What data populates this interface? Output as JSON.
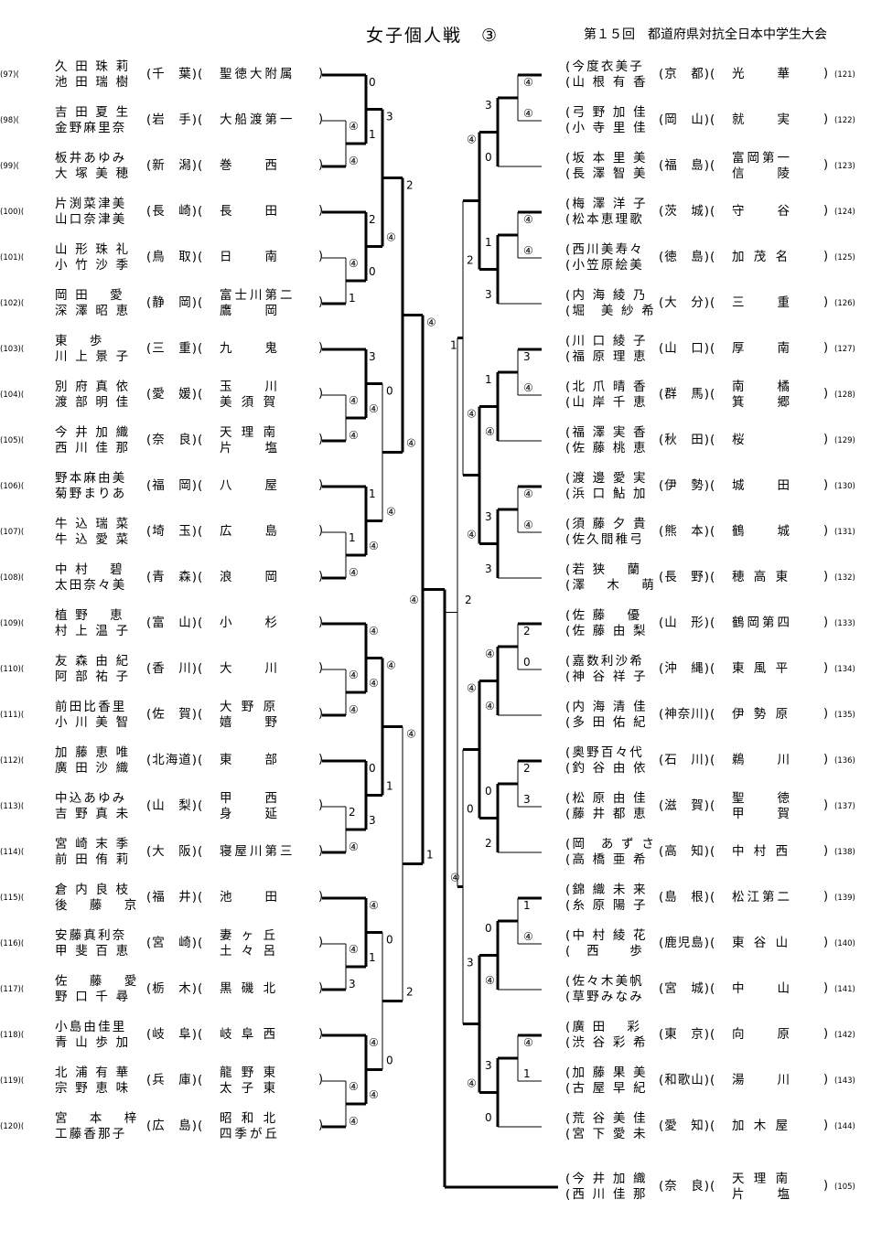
{
  "header": {
    "title": "女子個人戦　③",
    "event": "第１５回　都道府県対抗全日本中学生大会"
  },
  "left_entries": [
    {
      "no": "(97)(",
      "n1": "久 田 珠 莉",
      "n2": "池 田 瑞 樹",
      "pref": "(千　葉)(",
      "s1": "聖徳大附属",
      "s2": ""
    },
    {
      "no": "(98)(",
      "n1": "吉 田 夏 生",
      "n2": "金野麻里奈",
      "pref": "(岩　手)(",
      "s1": "大船渡第一",
      "s2": ""
    },
    {
      "no": "(99)(",
      "n1": "板井あゆみ",
      "n2": "大 塚 美 穂",
      "pref": "(新　潟)(",
      "s1": "巻　　西",
      "s2": ""
    },
    {
      "no": "(100)(",
      "n1": "片渕菜津美",
      "n2": "山口奈津美",
      "pref": "(長　崎)(",
      "s1": "長　　田",
      "s2": ""
    },
    {
      "no": "(101)(",
      "n1": "山 形 珠 礼",
      "n2": "小 竹 沙 季",
      "pref": "(鳥　取)(",
      "s1": "日　　南",
      "s2": ""
    },
    {
      "no": "(102)(",
      "n1": "岡 田　 愛",
      "n2": "深 澤 昭 恵",
      "pref": "(静　岡)(",
      "s1": "富士川第二",
      "s2": "鷹　　岡"
    },
    {
      "no": "(103)(",
      "n1": "東　 歩",
      "n2": "川 上 景 子",
      "pref": "(三　重)(",
      "s1": "九　　鬼",
      "s2": ""
    },
    {
      "no": "(104)(",
      "n1": "別 府 真 依",
      "n2": "渡 部 明 佳",
      "pref": "(愛　媛)(",
      "s1": "玉　　川",
      "s2": "美 須 賀"
    },
    {
      "no": "(105)(",
      "n1": "今 井 加 織",
      "n2": "西 川 佳 那",
      "pref": "(奈　良)(",
      "s1": "天 理 南",
      "s2": "片　　塩"
    },
    {
      "no": "(106)(",
      "n1": "野本麻由美",
      "n2": "菊野まりあ",
      "pref": "(福　岡)(",
      "s1": "八　　屋",
      "s2": ""
    },
    {
      "no": "(107)(",
      "n1": "牛 込 瑞 菜",
      "n2": "牛 込 愛 菜",
      "pref": "(埼　玉)(",
      "s1": "広　　島",
      "s2": ""
    },
    {
      "no": "(108)(",
      "n1": "中 村　 碧",
      "n2": "太田奈々美",
      "pref": "(青　森)(",
      "s1": "浪　　岡",
      "s2": ""
    },
    {
      "no": "(109)(",
      "n1": "植 野　 恵",
      "n2": "村 上 温 子",
      "pref": "(富　山)(",
      "s1": "小　　杉",
      "s2": ""
    },
    {
      "no": "(110)(",
      "n1": "友 森 由 紀",
      "n2": "阿 部 祐 子",
      "pref": "(香　川)(",
      "s1": "大　　川",
      "s2": ""
    },
    {
      "no": "(111)(",
      "n1": "前田比香里",
      "n2": "小 川 美 智",
      "pref": "(佐　賀)(",
      "s1": "大 野 原",
      "s2": "嬉　　野"
    },
    {
      "no": "(112)(",
      "n1": "加 藤 恵 唯",
      "n2": "廣 田 沙 織",
      "pref": "(北海道)(",
      "s1": "東　　部",
      "s2": ""
    },
    {
      "no": "(113)(",
      "n1": "中込あゆみ",
      "n2": "吉 野 真 未",
      "pref": "(山　梨)(",
      "s1": "甲　　西",
      "s2": "身　　延"
    },
    {
      "no": "(114)(",
      "n1": "宮 崎 末 季",
      "n2": "前 田 侑 莉",
      "pref": "(大　阪)(",
      "s1": "寝屋川第三",
      "s2": ""
    },
    {
      "no": "(115)(",
      "n1": "倉 内 良 枝",
      "n2": "後　 藤　 京",
      "pref": "(福　井)(",
      "s1": "池　　田",
      "s2": ""
    },
    {
      "no": "(116)(",
      "n1": "安藤真利奈",
      "n2": "甲 斐 百 恵",
      "pref": "(宮　崎)(",
      "s1": "妻 ヶ 丘",
      "s2": "土 々 呂"
    },
    {
      "no": "(117)(",
      "n1": "佐　 藤　 愛",
      "n2": "野 口 千 尋",
      "pref": "(栃　木)(",
      "s1": "黒 磯 北",
      "s2": ""
    },
    {
      "no": "(118)(",
      "n1": "小島由佳里",
      "n2": "青 山 歩 加",
      "pref": "(岐　阜)(",
      "s1": "岐 阜 西",
      "s2": ""
    },
    {
      "no": "(119)(",
      "n1": "北 浦 有 華",
      "n2": "宗 野 恵 味",
      "pref": "(兵　庫)(",
      "s1": "龍 野 東",
      "s2": "太 子 東"
    },
    {
      "no": "(120)(",
      "n1": "宮　 本　 梓",
      "n2": "工藤香那子",
      "pref": "(広　島)(",
      "s1": "昭 和 北",
      "s2": "四季が丘"
    }
  ],
  "right_entries": [
    {
      "no": "(121)",
      "n1": "(今度衣美子",
      "n2": "(山 根 有 香",
      "pref": "(京　都)(",
      "s1": "光　　華",
      "s2": ""
    },
    {
      "no": "(122)",
      "n1": "(弓 野 加 佳",
      "n2": "(小 寺 里 佳",
      "pref": "(岡　山)(",
      "s1": "就　　実",
      "s2": ""
    },
    {
      "no": "(123)",
      "n1": "(坂 本 里 美",
      "n2": "(長 澤 智 美",
      "pref": "(福　島)(",
      "s1": "富岡第一",
      "s2": "信　　陵"
    },
    {
      "no": "(124)",
      "n1": "(梅 澤 洋 子",
      "n2": "(松本恵理歌",
      "pref": "(茨　城)(",
      "s1": "守　　谷",
      "s2": ""
    },
    {
      "no": "(125)",
      "n1": "(西川美寿々",
      "n2": "(小笠原絵美",
      "pref": "(徳　島)(",
      "s1": "加 茂 名",
      "s2": ""
    },
    {
      "no": "(126)",
      "n1": "(内 海 綾 乃",
      "n2": "(堀　美 紗 希",
      "pref": "(大　分)(",
      "s1": "三　　重",
      "s2": ""
    },
    {
      "no": "(127)",
      "n1": "(川 口 綾 子",
      "n2": "(福 原 理 恵",
      "pref": "(山　口)(",
      "s1": "厚　　南",
      "s2": ""
    },
    {
      "no": "(128)",
      "n1": "(北 爪 晴 香",
      "n2": "(山 岸 千 恵",
      "pref": "(群　馬)(",
      "s1": "南　　橘",
      "s2": "箕　　郷"
    },
    {
      "no": "(129)",
      "n1": "(福 澤 実 香",
      "n2": "(佐 藤 桃 恵",
      "pref": "(秋　田)(",
      "s1": "桜",
      "s2": ""
    },
    {
      "no": "(130)",
      "n1": "(渡 邊 愛 実",
      "n2": "(浜 口 鮎 加",
      "pref": "(伊　勢)(",
      "s1": "城　　田",
      "s2": ""
    },
    {
      "no": "(131)",
      "n1": "(須 藤 夕 貴",
      "n2": "(佐久間稚弓",
      "pref": "(熊　本)(",
      "s1": "鶴　　城",
      "s2": ""
    },
    {
      "no": "(132)",
      "n1": "(若 狭　 蘭",
      "n2": "(澤　 木　 萌",
      "pref": "(長　野)(",
      "s1": "穂 高 東",
      "s2": ""
    },
    {
      "no": "(133)",
      "n1": "(佐 藤　 優",
      "n2": "(佐 藤 由 梨",
      "pref": "(山　形)(",
      "s1": "鶴岡第四",
      "s2": ""
    },
    {
      "no": "(134)",
      "n1": "(嘉数利沙希",
      "n2": "(神 谷 祥 子",
      "pref": "(沖　縄)(",
      "s1": "東 風 平",
      "s2": ""
    },
    {
      "no": "(135)",
      "n1": "(内 海 清 佳",
      "n2": "(多 田 佑 紀",
      "pref": "(神奈川)(",
      "s1": "伊 勢 原",
      "s2": ""
    },
    {
      "no": "(136)",
      "n1": "(奥野百々代",
      "n2": "(釣 谷 由 依",
      "pref": "(石　川)(",
      "s1": "鵜　　川",
      "s2": ""
    },
    {
      "no": "(137)",
      "n1": "(松 原 由 佳",
      "n2": "(藤 井 都 恵",
      "pref": "(滋　賀)(",
      "s1": "聖　　徳",
      "s2": "甲　　賀"
    },
    {
      "no": "(138)",
      "n1": "(岡　あ ず さ",
      "n2": "(高 橋 亜 希",
      "pref": "(高　知)(",
      "s1": "中 村 西",
      "s2": ""
    },
    {
      "no": "(139)",
      "n1": "(錦 織 未 来",
      "n2": "(糸 原 陽 子",
      "pref": "(島　根)(",
      "s1": "松江第二",
      "s2": ""
    },
    {
      "no": "(140)",
      "n1": "(中 村 綾 花",
      "n2": "(　西　　歩",
      "pref": "(鹿児島)(",
      "s1": "東 谷 山",
      "s2": ""
    },
    {
      "no": "(141)",
      "n1": "(佐々木美帆",
      "n2": "(草野みなみ",
      "pref": "(宮　城)(",
      "s1": "中　　山",
      "s2": ""
    },
    {
      "no": "(142)",
      "n1": "(廣 田　 彩",
      "n2": "(渋 谷 彩 希",
      "pref": "(東　京)(",
      "s1": "向　　原",
      "s2": ""
    },
    {
      "no": "(143)",
      "n1": "(加 藤 果 美",
      "n2": "(古 屋 早 紀",
      "pref": "(和歌山)(",
      "s1": "湯　　川",
      "s2": ""
    },
    {
      "no": "(144)",
      "n1": "(荒 谷 美 佳",
      "n2": "(宮 下 愛 未",
      "pref": "(愛　知)(",
      "s1": "加 木 屋",
      "s2": ""
    }
  ],
  "winner_entry": {
    "no": "(105)",
    "n1": "(今 井 加 織",
    "n2": "(西 川 佳 那",
    "pref": "(奈　良)(",
    "s1": "天 理 南",
    "s2": "片　　塩"
  },
  "scores": [
    "④",
    "0",
    "1",
    "④",
    "④",
    "④",
    "1",
    "2",
    "④",
    "0",
    "3",
    "④",
    "④",
    "1",
    "④",
    "1",
    "④",
    "④",
    "④",
    "2",
    "④",
    "0",
    "3",
    "3",
    "④",
    "1",
    "④",
    "④",
    "④",
    "④",
    "3",
    "④",
    "0",
    "3",
    "④",
    "④",
    "1",
    "0",
    "0",
    "④",
    "2",
    "④",
    "④",
    "2",
    "3",
    "④",
    "1",
    "④",
    "④",
    "④",
    "④",
    "④",
    "④",
    "④",
    "④",
    "1",
    "④",
    "④",
    "④",
    "④",
    "④",
    "④",
    "④",
    "0",
    "1",
    "④",
    "④",
    "④",
    "3",
    "3",
    "④",
    "④",
    "④",
    "2",
    "④",
    "④",
    "0",
    "④",
    "3",
    "④",
    "2",
    "2",
    "④",
    "④",
    "④",
    "0",
    "④",
    "④",
    "④",
    "④",
    "④",
    "④",
    "1",
    "④",
    "④",
    "④",
    "④",
    "④",
    "④",
    "3",
    "0",
    "④",
    "④",
    "④",
    "④",
    "④",
    "④",
    "④",
    "④",
    "④",
    "3",
    "④",
    "④",
    "④",
    "④",
    "④",
    "④",
    "④",
    "④",
    "④",
    "④"
  ],
  "score_values": [
    "④",
    "0",
    "1",
    "④",
    "1",
    "2",
    "0",
    "3",
    "④",
    "④",
    "1",
    "④",
    "④",
    "④",
    "2",
    "④",
    "0",
    "3",
    "④",
    "④",
    "0",
    "④",
    "3",
    "④",
    "④",
    "④",
    "1",
    "0",
    "④",
    "④",
    "④",
    "④",
    "④",
    "④",
    "1",
    "0",
    "2",
    "④",
    "④",
    "④",
    "3",
    "④",
    "④",
    "④",
    "④",
    "1",
    "3",
    "④",
    "3",
    "④",
    "④",
    "1",
    "④",
    "④",
    "④",
    "④",
    "④",
    "0",
    "3",
    "④",
    "1",
    "④",
    "④",
    "④",
    "3",
    "④",
    "0",
    "④",
    "④",
    "④",
    "2",
    "④",
    "④",
    "2",
    "④",
    "3",
    "④",
    "④",
    "④",
    "④",
    "④",
    "④",
    "0",
    "2",
    "1",
    "④",
    "④",
    "④",
    "0",
    "④",
    "④",
    "④",
    "4",
    "0",
    "1",
    "2",
    "④",
    "④",
    "④",
    "④"
  ],
  "marks": {
    "left": [
      {
        "t": "④"
      },
      {
        "t": "④"
      },
      {
        "t": "0"
      },
      {
        "t": "1"
      },
      {
        "t": "④"
      },
      {
        "t": "1"
      },
      {
        "t": "2"
      },
      {
        "t": "0"
      },
      {
        "t": "④"
      },
      {
        "t": "④"
      },
      {
        "t": "3"
      },
      {
        "t": "④"
      },
      {
        "t": "1"
      },
      {
        "t": "④"
      },
      {
        "t": "1"
      },
      {
        "t": "④"
      },
      {
        "t": "④"
      },
      {
        "t": "④"
      },
      {
        "t": "④"
      },
      {
        "t": "④"
      },
      {
        "t": "2"
      },
      {
        "t": "④"
      },
      {
        "t": "0"
      },
      {
        "t": "3"
      },
      {
        "t": "④"
      },
      {
        "t": "3"
      },
      {
        "t": "④"
      },
      {
        "t": "1"
      },
      {
        "t": "④"
      },
      {
        "t": "④"
      },
      {
        "t": "④"
      },
      {
        "t": "④"
      },
      {
        "t": "3"
      },
      {
        "t": "④"
      },
      {
        "t": "0"
      },
      {
        "t": "④"
      },
      {
        "t": "④"
      },
      {
        "t": "1"
      },
      {
        "t": "0"
      },
      {
        "t": "0"
      },
      {
        "t": "2"
      },
      {
        "t": "④"
      },
      {
        "t": "④"
      },
      {
        "t": "2"
      },
      {
        "t": "3"
      },
      {
        "t": "④"
      },
      {
        "t": "1"
      },
      {
        "t": "④"
      },
      {
        "t": "④"
      },
      {
        "t": "④"
      },
      {
        "t": "④"
      },
      {
        "t": "④"
      }
    ],
    "right": [
      {
        "t": "④"
      },
      {
        "t": "④"
      },
      {
        "t": "3"
      },
      {
        "t": "0"
      },
      {
        "t": "④"
      },
      {
        "t": "④"
      },
      {
        "t": "1"
      },
      {
        "t": "3"
      },
      {
        "t": "3"
      },
      {
        "t": "④"
      },
      {
        "t": "1"
      },
      {
        "t": "④"
      },
      {
        "t": "④"
      },
      {
        "t": "④"
      },
      {
        "t": "3"
      },
      {
        "t": "3"
      },
      {
        "t": "2"
      },
      {
        "t": "0"
      },
      {
        "t": "④"
      },
      {
        "t": "④"
      },
      {
        "t": "2"
      },
      {
        "t": "3"
      },
      {
        "t": "0"
      },
      {
        "t": "2"
      },
      {
        "t": "1"
      },
      {
        "t": "④"
      },
      {
        "t": "0"
      },
      {
        "t": "④"
      },
      {
        "t": "④"
      },
      {
        "t": "1"
      },
      {
        "t": "3"
      },
      {
        "t": "0"
      },
      {
        "t": "④"
      },
      {
        "t": "2"
      },
      {
        "t": "④"
      },
      {
        "t": "④"
      },
      {
        "t": "④"
      },
      {
        "t": "0"
      },
      {
        "t": "3"
      },
      {
        "t": "④"
      },
      {
        "t": "3"
      },
      {
        "t": "④"
      },
      {
        "t": "④"
      },
      {
        "t": "④"
      },
      {
        "t": "④"
      },
      {
        "t": "④"
      },
      {
        "t": "④"
      },
      {
        "t": "④"
      }
    ],
    "center": [
      {
        "t": "④"
      },
      {
        "t": "④"
      },
      {
        "t": "1"
      },
      {
        "t": "2"
      },
      {
        "t": "④"
      },
      {
        "t": "④"
      },
      {
        "t": "1"
      },
      {
        "t": "④"
      }
    ],
    "vertical_note": "（ｻ）"
  }
}
